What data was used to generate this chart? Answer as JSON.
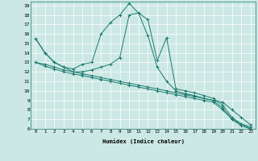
{
  "xlabel": "Humidex (Indice chaleur)",
  "background_color": "#cce8e4",
  "line_color": "#1a7a6e",
  "grid_color": "#ffffff",
  "xlim": [
    -0.5,
    23.5
  ],
  "ylim": [
    6,
    19.4
  ],
  "xticks": [
    0,
    1,
    2,
    3,
    4,
    5,
    6,
    7,
    8,
    9,
    10,
    11,
    12,
    13,
    14,
    15,
    16,
    17,
    18,
    19,
    20,
    21,
    22,
    23
  ],
  "yticks": [
    6,
    7,
    8,
    9,
    10,
    11,
    12,
    13,
    14,
    15,
    16,
    17,
    18,
    19
  ],
  "series": [
    [
      15.5,
      14.0,
      13.0,
      12.5,
      12.3,
      12.8,
      13.0,
      16.0,
      17.2,
      18.0,
      19.2,
      18.2,
      17.5,
      13.2,
      15.6,
      10.2,
      10.0,
      9.8,
      9.5,
      9.2,
      8.5,
      7.2,
      6.5,
      6.2
    ],
    [
      15.5,
      14.0,
      13.0,
      12.5,
      12.0,
      12.0,
      12.2,
      12.5,
      12.8,
      13.5,
      18.0,
      18.2,
      15.8,
      12.5,
      11.0,
      10.0,
      9.7,
      9.5,
      9.2,
      9.0,
      8.2,
      7.0,
      6.3,
      6.0
    ],
    [
      13.0,
      12.8,
      12.5,
      12.2,
      12.0,
      11.8,
      11.6,
      11.4,
      11.2,
      11.0,
      10.8,
      10.6,
      10.4,
      10.2,
      10.0,
      9.8,
      9.6,
      9.4,
      9.2,
      9.0,
      8.8,
      8.0,
      7.2,
      6.4
    ],
    [
      13.0,
      12.6,
      12.3,
      12.0,
      11.8,
      11.6,
      11.4,
      11.2,
      11.0,
      10.8,
      10.6,
      10.4,
      10.2,
      10.0,
      9.8,
      9.6,
      9.4,
      9.2,
      9.0,
      8.8,
      8.0,
      7.0,
      6.5,
      6.0
    ]
  ]
}
